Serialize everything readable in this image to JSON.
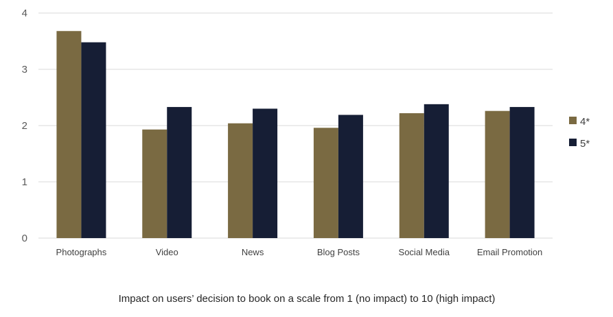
{
  "chart_data": {
    "type": "bar",
    "categories": [
      "Photographs",
      "Video",
      "News",
      "Blog Posts",
      "Social Media",
      "Email Promotion"
    ],
    "series": [
      {
        "name": "4*",
        "color": "#7a6a42",
        "values": [
          3.68,
          1.93,
          2.04,
          1.96,
          2.22,
          2.26
        ]
      },
      {
        "name": "5*",
        "color": "#161e35",
        "values": [
          3.48,
          2.33,
          2.3,
          2.19,
          2.38,
          2.33
        ]
      }
    ],
    "xlabel": "Impact on users’ decision to book on a scale from 1 (no impact) to 10 (high impact)",
    "ylim": [
      0,
      4
    ],
    "yticks": [
      0,
      1,
      2,
      3,
      4
    ],
    "grid": true,
    "legend": "right"
  }
}
